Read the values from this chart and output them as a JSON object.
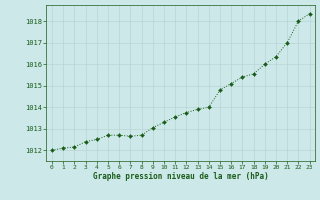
{
  "x": [
    0,
    1,
    2,
    3,
    4,
    5,
    6,
    7,
    8,
    9,
    10,
    11,
    12,
    13,
    14,
    15,
    16,
    17,
    18,
    19,
    20,
    21,
    22,
    23
  ],
  "y": [
    1012.0,
    1012.1,
    1012.15,
    1012.4,
    1012.5,
    1012.7,
    1012.7,
    1012.65,
    1012.7,
    1013.05,
    1013.3,
    1013.55,
    1013.75,
    1013.9,
    1014.0,
    1014.8,
    1015.1,
    1015.4,
    1015.55,
    1016.0,
    1016.35,
    1017.0,
    1018.0,
    1018.35
  ],
  "line_color": "#1a5c1a",
  "marker_color": "#1a5c1a",
  "bg_color": "#cce8e8",
  "grid_color": "#b8d4d4",
  "xlabel": "Graphe pression niveau de la mer (hPa)",
  "xlabel_color": "#1a5c1a",
  "tick_color": "#1a5c1a",
  "ylim": [
    1011.5,
    1018.75
  ],
  "xlim": [
    -0.5,
    23.5
  ],
  "yticks": [
    1012,
    1013,
    1014,
    1015,
    1016,
    1017,
    1018
  ],
  "xticks": [
    0,
    1,
    2,
    3,
    4,
    5,
    6,
    7,
    8,
    9,
    10,
    11,
    12,
    13,
    14,
    15,
    16,
    17,
    18,
    19,
    20,
    21,
    22,
    23
  ],
  "figsize": [
    3.2,
    2.0
  ],
  "dpi": 100
}
